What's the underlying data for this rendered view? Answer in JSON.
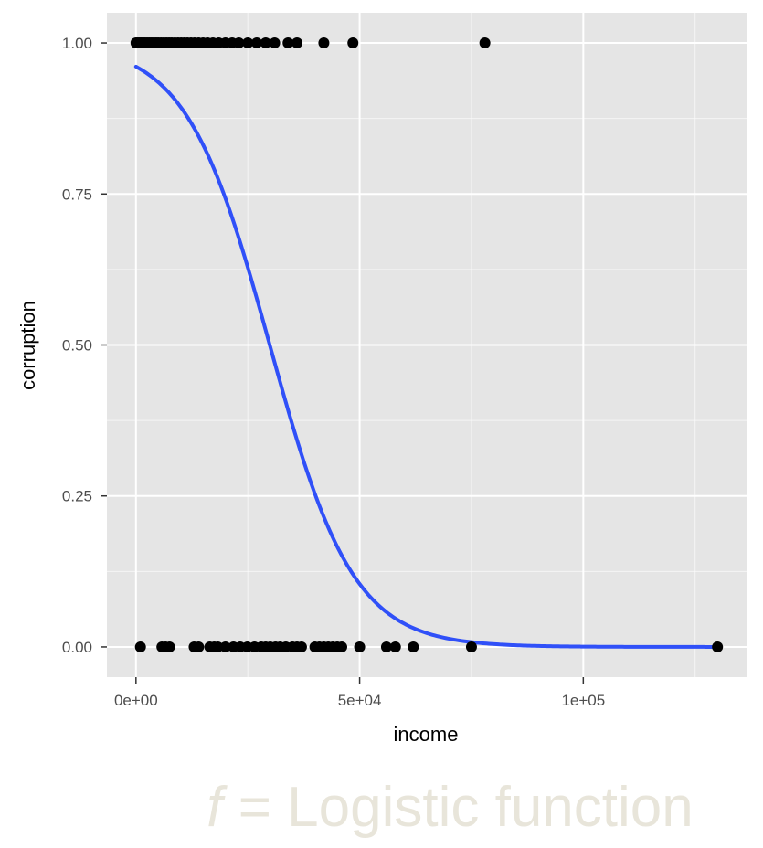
{
  "chart_data": {
    "type": "scatter",
    "xlabel": "income",
    "ylabel": "corruption",
    "x_ticks": [
      {
        "value": 0,
        "label": "0e+00"
      },
      {
        "value": 50000,
        "label": "5e+04"
      },
      {
        "value": 100000,
        "label": "1e+05"
      }
    ],
    "y_ticks": [
      {
        "value": 0,
        "label": "0.00"
      },
      {
        "value": 0.25,
        "label": "0.25"
      },
      {
        "value": 0.5,
        "label": "0.50"
      },
      {
        "value": 0.75,
        "label": "0.75"
      },
      {
        "value": 1,
        "label": "1.00"
      }
    ],
    "xlim": [
      -6500,
      136500
    ],
    "ylim": [
      -0.05,
      1.05
    ],
    "grid": true,
    "colors": {
      "panel_bg": "#e5e5e5",
      "grid": "#ffffff",
      "points": "#000000",
      "curve": "#3050f8"
    },
    "series": [
      {
        "kind": "points",
        "points_y1": [
          0,
          400,
          800,
          1200,
          1600,
          2000,
          2500,
          3000,
          3500,
          4000,
          4500,
          5000,
          5600,
          6200,
          6800,
          7400,
          8000,
          8700,
          9400,
          10100,
          10800,
          11500,
          12300,
          13100,
          14000,
          15000,
          16000,
          17200,
          18500,
          20000,
          21500,
          23000,
          25000,
          27000,
          29000,
          31000,
          34000,
          36000,
          42000,
          48500,
          78000
        ],
        "points_y0": [
          1000,
          5800,
          6600,
          7500,
          13000,
          14000,
          16500,
          17500,
          18300,
          20000,
          21800,
          23300,
          24900,
          26500,
          28000,
          29000,
          30000,
          31200,
          32200,
          33500,
          35000,
          36000,
          37000,
          40000,
          41000,
          42000,
          43000,
          44000,
          45000,
          46000,
          50000,
          56000,
          58000,
          62000,
          75000,
          130000
        ]
      },
      {
        "kind": "curve",
        "model": "logistic",
        "intercept": 3.2,
        "slope": -0.000107
      }
    ]
  },
  "caption": {
    "f": "f",
    "rest": " = Logistic function"
  }
}
